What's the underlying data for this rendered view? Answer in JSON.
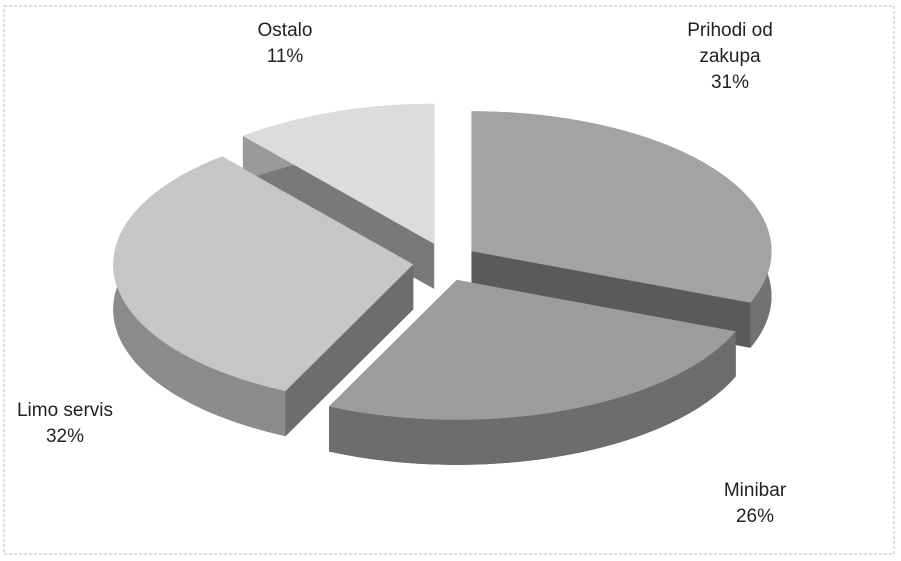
{
  "chart_data": {
    "type": "pie3d",
    "categories": [
      "Prihodi od zakupa",
      "Minibar",
      "Limo servis",
      "Ostalo"
    ],
    "values": [
      31,
      26,
      32,
      11
    ],
    "value_labels": [
      "31%",
      "26%",
      "32%",
      "11%"
    ],
    "colors": [
      "#a3a3a3",
      "#9c9c9c",
      "#c6c6c6",
      "#dcdcdc"
    ]
  }
}
